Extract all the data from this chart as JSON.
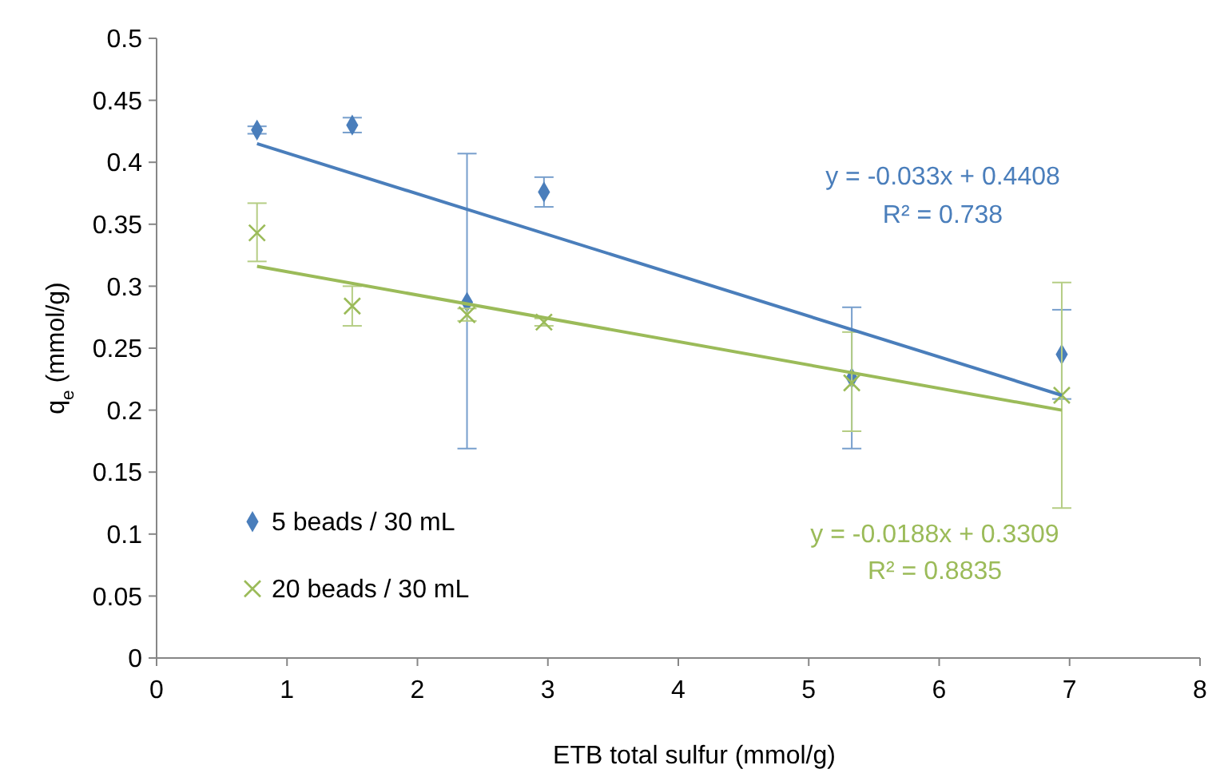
{
  "chart_data": {
    "type": "scatter",
    "xlabel": "ETB total sulfur (mmol/g)",
    "ylabel": "q$_{e}$ (mmol/g)",
    "xlim": [
      0,
      8
    ],
    "xticks": [
      0,
      1,
      2,
      3,
      4,
      5,
      6,
      7,
      8
    ],
    "ylim": [
      0,
      0.5
    ],
    "yticks": [
      0,
      0.05,
      0.1,
      0.15,
      0.2,
      0.25,
      0.3,
      0.35,
      0.4,
      0.45,
      0.5
    ],
    "grid": false,
    "legend": "bottom left",
    "series": [
      {
        "name": "5 beads / 30 mL",
        "marker": "diamond",
        "color": "#4a7ebb",
        "x": [
          0.77,
          1.5,
          2.38,
          2.97,
          5.33,
          6.94
        ],
        "values": [
          0.426,
          0.43,
          0.287,
          0.376,
          0.226,
          0.245
        ],
        "errors": [
          [
            0.423,
            0.429
          ],
          [
            0.424,
            0.436
          ],
          [
            0.169,
            0.407
          ],
          [
            0.364,
            0.388
          ],
          [
            0.169,
            0.283
          ],
          [
            0.209,
            0.281
          ]
        ]
      },
      {
        "name": "20 beads / 30 mL",
        "marker": "cross",
        "color": "#9bbb59",
        "x": [
          0.77,
          1.5,
          2.38,
          2.97,
          5.33,
          6.94
        ],
        "values": [
          0.343,
          0.284,
          0.277,
          0.271,
          0.222,
          0.212
        ],
        "errors": [
          [
            0.32,
            0.367
          ],
          [
            0.268,
            0.3
          ],
          [
            0.272,
            0.282
          ],
          [
            0.268,
            0.274
          ],
          [
            0.183,
            0.263
          ],
          [
            0.121,
            0.303
          ]
        ]
      },
      {
        "type": "line",
        "color": "#4a7ebb",
        "x": [
          0.77,
          6.94
        ],
        "values": [
          0.415,
          0.212
        ]
      },
      {
        "type": "line",
        "color": "#9bbb59",
        "x": [
          0.77,
          6.94
        ],
        "values": [
          0.316,
          0.2
        ]
      }
    ],
    "annotations": [
      "y = -0.033x + 0.4408",
      "R² = 0.738",
      "y = -0.0188x + 0.3309",
      "R² = 0.8835"
    ]
  }
}
